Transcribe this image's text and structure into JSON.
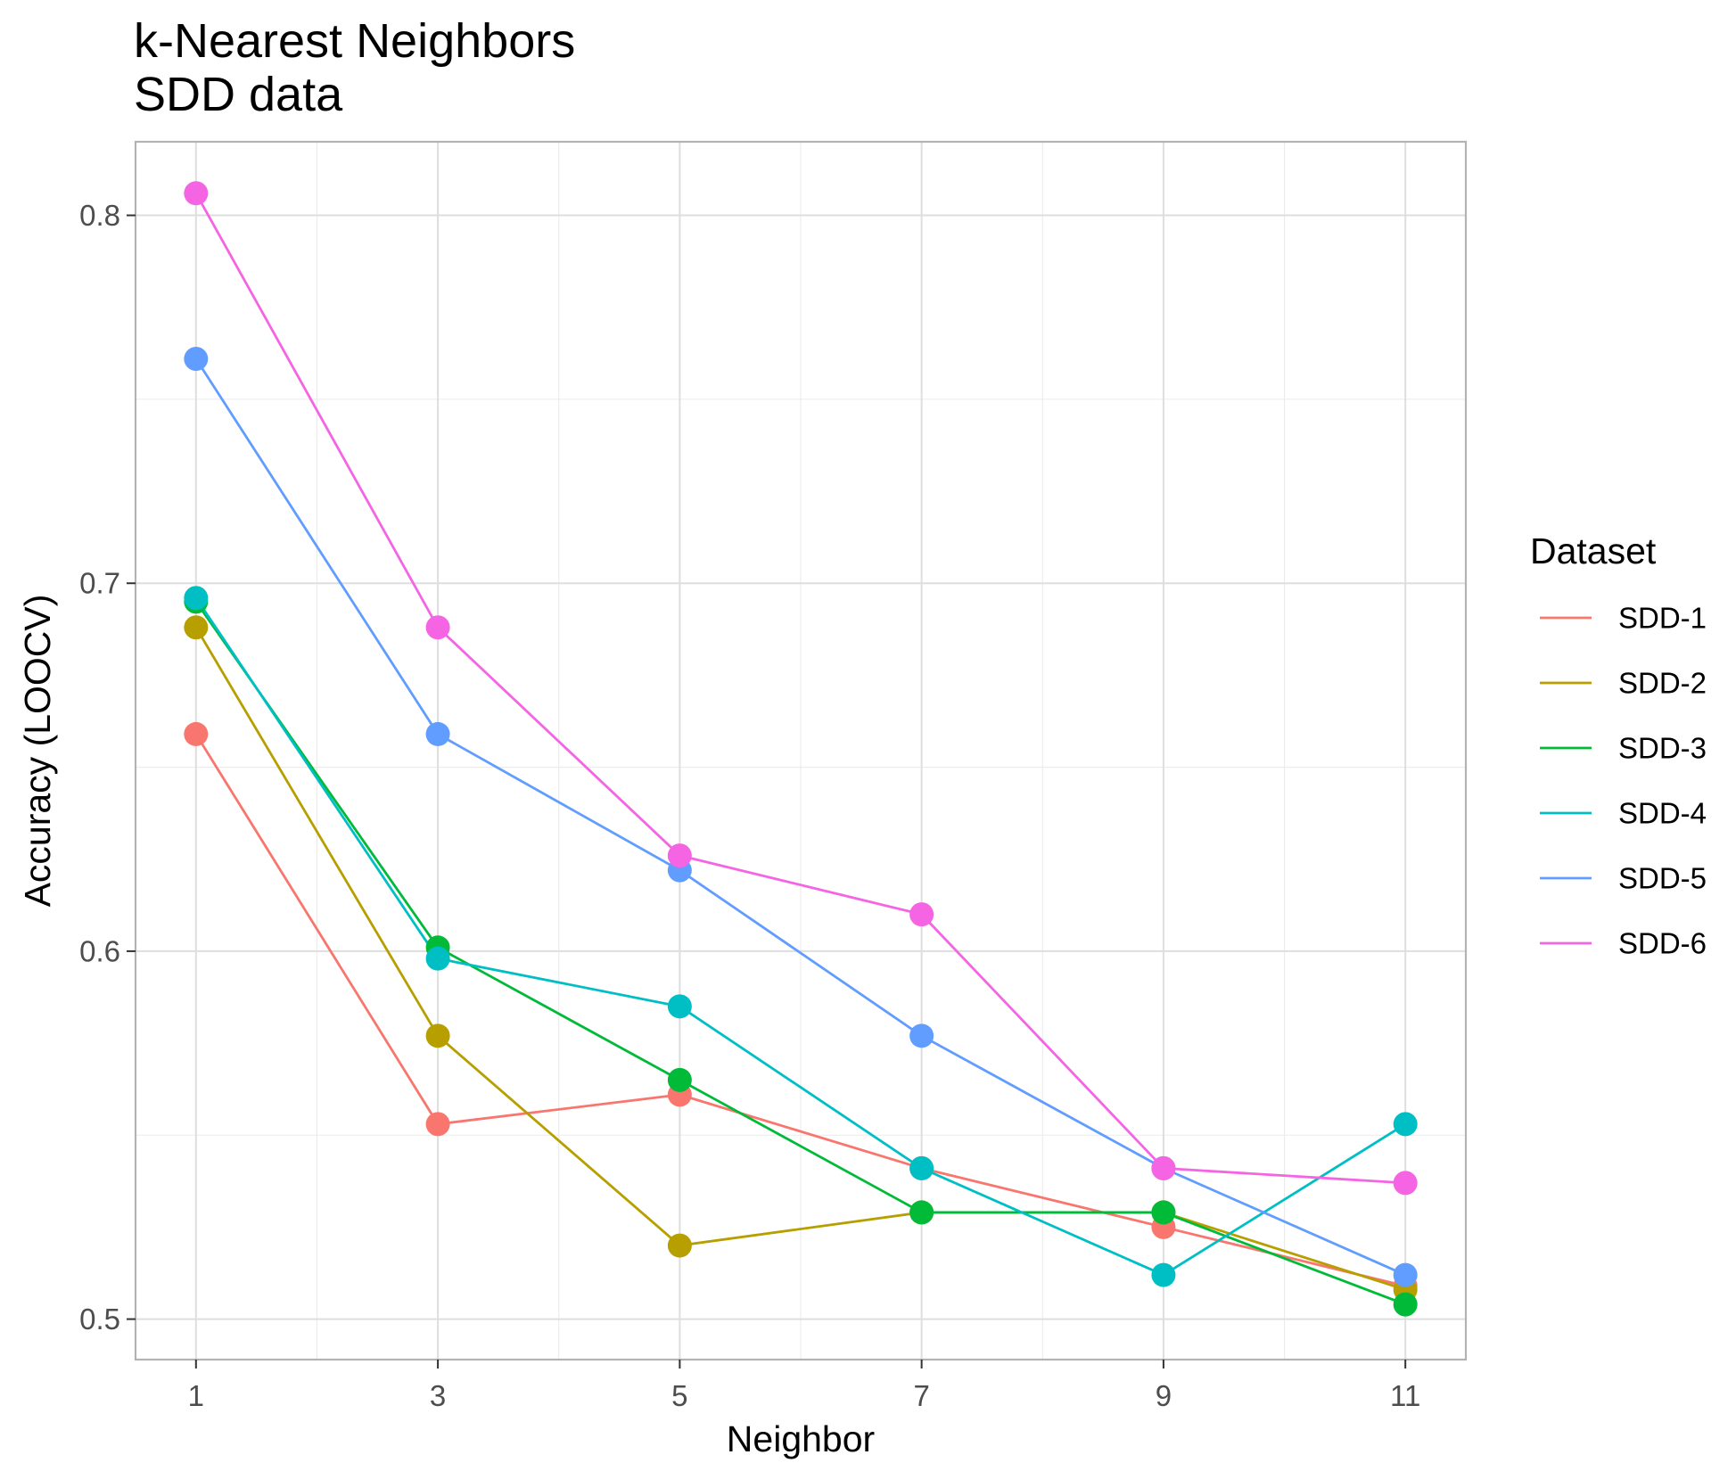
{
  "chart_data": {
    "type": "line",
    "title": "k-Nearest Neighbors",
    "subtitle": "SDD data",
    "xlabel": "Neighbor",
    "ylabel": "Accuracy (LOOCV)",
    "x": [
      1,
      3,
      5,
      7,
      9,
      11
    ],
    "x_ticks": [
      "1",
      "3",
      "5",
      "7",
      "9",
      "11"
    ],
    "xlim": [
      0.5,
      11.5
    ],
    "ylim": [
      0.489,
      0.82
    ],
    "y_ticks": [
      "0.5",
      "0.6",
      "0.7",
      "0.8"
    ],
    "grid": true,
    "legend": {
      "title": "Dataset",
      "position": "right"
    },
    "series": [
      {
        "name": "SDD-1",
        "color": "#F8766D",
        "values": [
          0.659,
          0.553,
          0.561,
          0.541,
          0.525,
          0.509
        ]
      },
      {
        "name": "SDD-2",
        "color": "#B79F00",
        "values": [
          0.688,
          0.577,
          0.52,
          0.529,
          0.529,
          0.508
        ]
      },
      {
        "name": "SDD-3",
        "color": "#00BA38",
        "values": [
          0.695,
          0.601,
          0.565,
          0.529,
          0.529,
          0.504
        ]
      },
      {
        "name": "SDD-4",
        "color": "#00BFC4",
        "values": [
          0.696,
          0.598,
          0.585,
          0.541,
          0.512,
          0.553
        ]
      },
      {
        "name": "SDD-5",
        "color": "#619CFF",
        "values": [
          0.761,
          0.659,
          0.622,
          0.577,
          0.541,
          0.512
        ]
      },
      {
        "name": "SDD-6",
        "color": "#F564E3",
        "values": [
          0.806,
          0.688,
          0.626,
          0.61,
          0.541,
          0.537
        ]
      }
    ]
  }
}
